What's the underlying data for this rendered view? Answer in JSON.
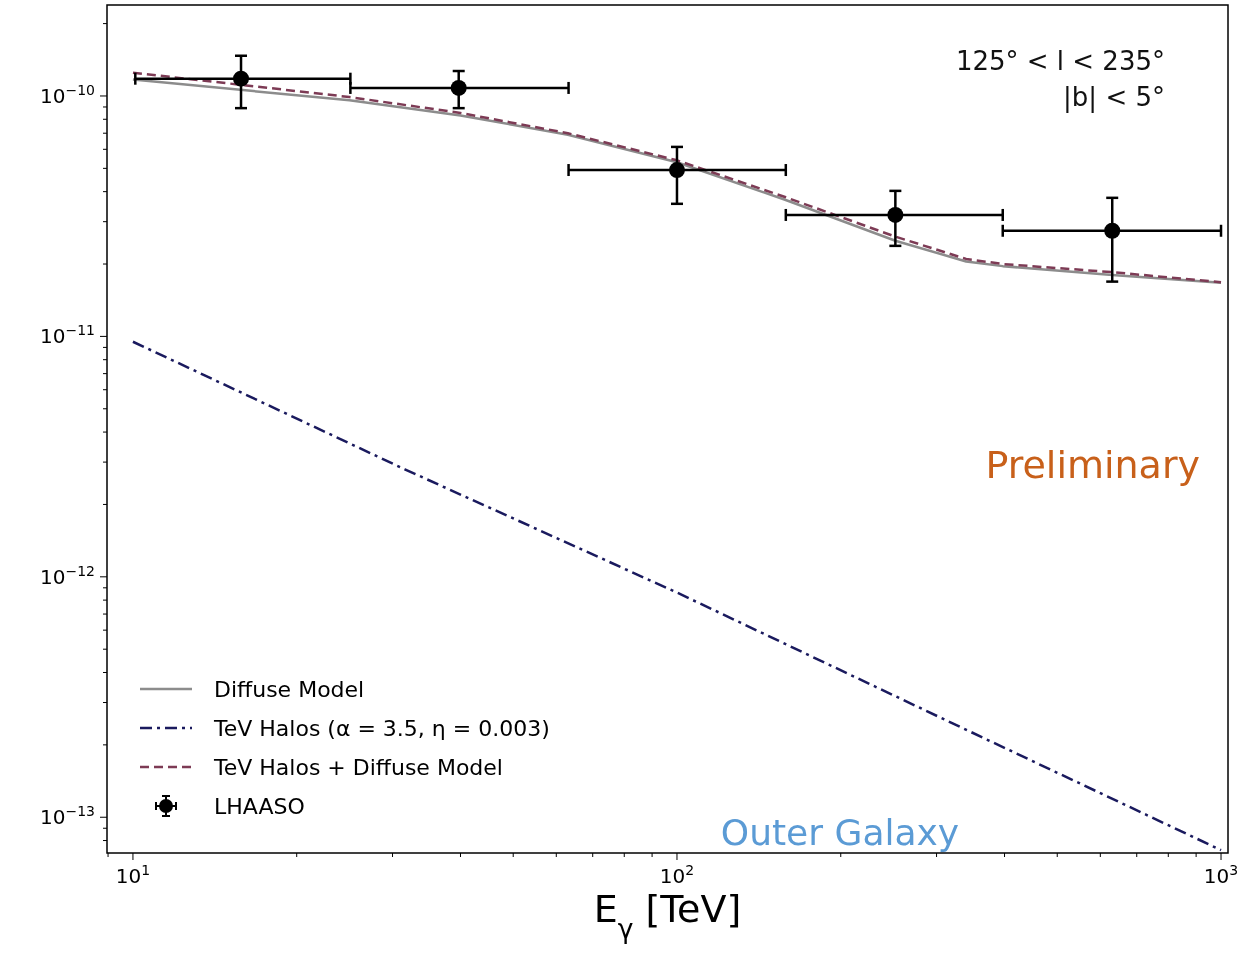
{
  "chart_data": {
    "type": "line",
    "xlabel": "E$_{γ}$ [TeV]",
    "annotations": [
      "125° < l < 235°",
      "|b| < 5°",
      "Preliminary",
      "Outer Galaxy"
    ],
    "log": "xy",
    "xlim": [
      8.96,
      1030
    ],
    "ylim": [
      7.1e-14,
      2.39e-10
    ],
    "xticks": [
      {
        "value": 10,
        "label": "10$^{1}$"
      },
      {
        "value": 100,
        "label": "10$^{2}$"
      },
      {
        "value": 1000,
        "label": "10$^{3}$"
      }
    ],
    "yticks": [
      {
        "value": 1e-13,
        "label": "10$^{−13}$"
      },
      {
        "value": 1e-12,
        "label": "10$^{−12}$"
      },
      {
        "value": 1e-11,
        "label": "10$^{−11}$"
      },
      {
        "value": 1e-10,
        "label": "10$^{−10}$"
      }
    ],
    "grid": false,
    "legend": "bottom left",
    "series": [
      {
        "name": "Diffuse Model",
        "color": "#8c8c8c",
        "line_style": "solid",
        "x": [
          10,
          25,
          40,
          63,
          100,
          158,
          252,
          340,
          397,
          631,
          1000
        ],
        "values": [
          1.17e-10,
          9.6e-11,
          8.3e-11,
          6.9e-11,
          5.3e-11,
          3.7e-11,
          2.5e-11,
          2.05e-11,
          1.96e-11,
          1.8e-11,
          1.67e-11
        ]
      },
      {
        "name": "TeV Halos (α = 3.5, η = 0.003)",
        "color": "#1a1a5e",
        "line_style": "dashdot",
        "x": [
          10,
          31.6,
          100,
          316,
          1000
        ],
        "values": [
          9.5e-12,
          2.8e-12,
          8.6e-13,
          2.5e-13,
          7.3e-14
        ]
      },
      {
        "name": "TeV Halos + Diffuse Model",
        "color": "#7d3b55",
        "line_style": "dashed",
        "x": [
          10,
          25,
          40,
          63,
          100,
          158,
          252,
          340,
          397,
          631,
          1000
        ],
        "values": [
          1.25e-10,
          9.9e-11,
          8.5e-11,
          7e-11,
          5.4e-11,
          3.8e-11,
          2.6e-11,
          2.1e-11,
          2e-11,
          1.85e-11,
          1.68e-11
        ]
      },
      {
        "name": "LHAASO",
        "type": "scatter",
        "color": "#000000",
        "marker": "circle",
        "x": [
          15.8,
          39.7,
          100,
          252,
          631
        ],
        "values": [
          1.18e-10,
          1.08e-10,
          4.92e-11,
          3.2e-11,
          2.75e-11
        ],
        "errors": [
          [
            8.9e-11,
            1.47e-10
          ],
          [
            8.9e-11,
            1.27e-10
          ],
          [
            3.56e-11,
            6.14e-11
          ],
          [
            2.38e-11,
            4.03e-11
          ],
          [
            1.69e-11,
            3.77e-11
          ]
        ],
        "xerrors": [
          [
            10.1,
            25.1
          ],
          [
            25.1,
            63.2
          ],
          [
            63.2,
            158.5
          ],
          [
            158.5,
            397
          ],
          [
            397,
            1000
          ]
        ]
      }
    ]
  }
}
